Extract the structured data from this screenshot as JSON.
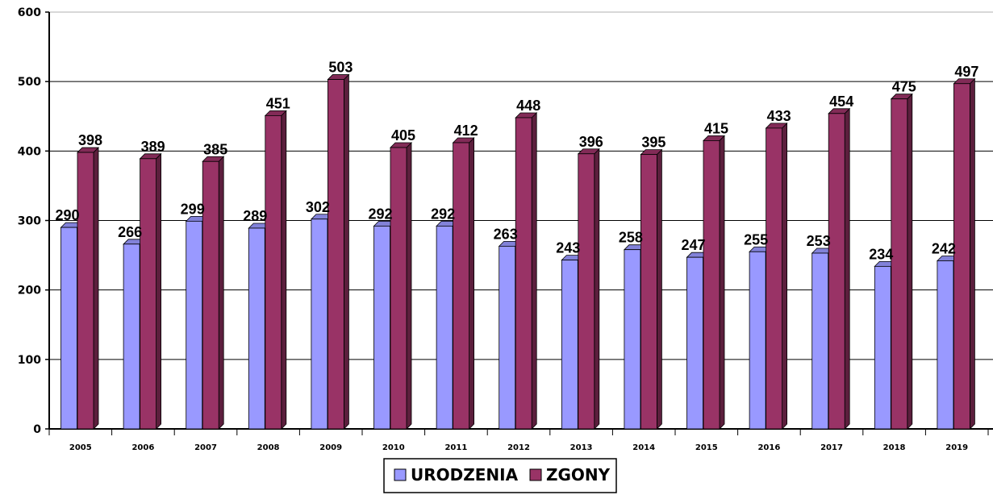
{
  "chart_data": {
    "type": "bar",
    "categories": [
      "2005",
      "2006",
      "2007",
      "2008",
      "2009",
      "2010",
      "2011",
      "2012",
      "2013",
      "2014",
      "2015",
      "2016",
      "2017",
      "2018",
      "2019"
    ],
    "series": [
      {
        "name": "URODZENIA",
        "color": "#9999ff",
        "values": [
          290,
          266,
          299,
          289,
          302,
          292,
          292,
          263,
          243,
          258,
          247,
          255,
          253,
          234,
          242
        ]
      },
      {
        "name": "ZGONY",
        "color": "#993366",
        "values": [
          398,
          389,
          385,
          451,
          503,
          405,
          412,
          448,
          396,
          395,
          415,
          433,
          454,
          475,
          497
        ]
      }
    ],
    "ylim": [
      0,
      600
    ],
    "yticks": [
      0,
      100,
      200,
      300,
      400,
      500,
      600
    ],
    "grid": true,
    "legend": "bottom",
    "style": "3d-bar"
  }
}
